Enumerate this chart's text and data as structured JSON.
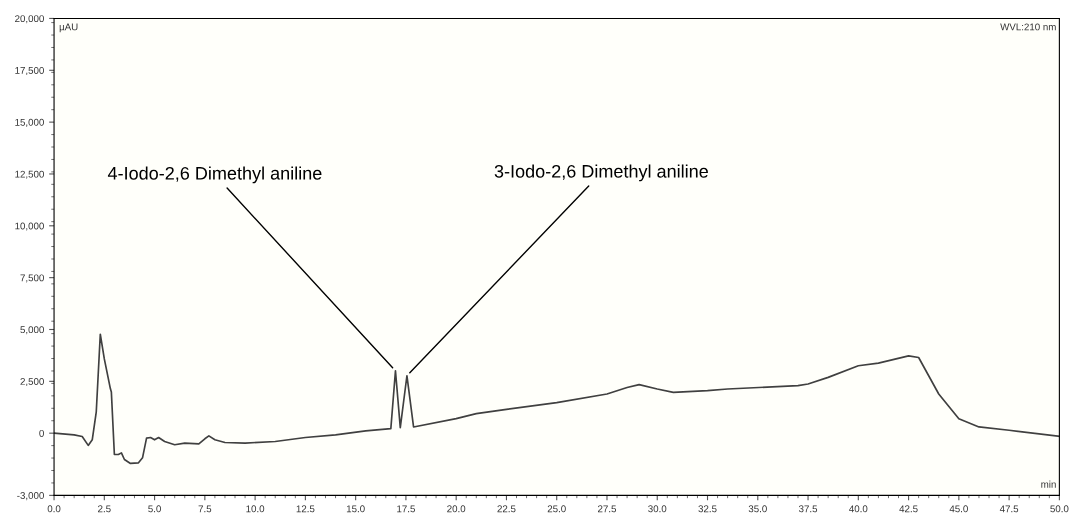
{
  "chart_data": {
    "type": "line",
    "xlabel": "min",
    "ylabel": "µAU",
    "xlim": [
      0,
      50
    ],
    "ylim": [
      -3000,
      20000
    ],
    "xticks": [
      {
        "value": 0,
        "label": "0.0"
      },
      2.5,
      {
        "value": 5,
        "label": "5.0"
      },
      7.5,
      {
        "value": 10,
        "label": "10.0"
      },
      12.5,
      {
        "value": 15,
        "label": "15.0"
      },
      17.5,
      {
        "value": 20,
        "label": "20.0"
      },
      22.5,
      {
        "value": 25,
        "label": "25.0"
      },
      27.5,
      {
        "value": 30,
        "label": "30.0"
      },
      32.5,
      {
        "value": 35,
        "label": "35.0"
      },
      37.5,
      {
        "value": 40,
        "label": "40.0"
      },
      42.5,
      {
        "value": 45,
        "label": "45.0"
      },
      47.5,
      {
        "value": 50,
        "label": "50.0"
      }
    ],
    "yticks": [
      {
        "value": -3000,
        "label": "-3,000"
      },
      0,
      {
        "value": 2500,
        "label": "2,500"
      },
      {
        "value": 5000,
        "label": "5,000"
      },
      {
        "value": 7500,
        "label": "7,500"
      },
      {
        "value": 10000,
        "label": "10,000"
      },
      {
        "value": 12500,
        "label": "12,500"
      },
      {
        "value": 15000,
        "label": "15,000"
      },
      {
        "value": 17500,
        "label": "17,500"
      },
      {
        "value": 20000,
        "label": "20,000"
      }
    ],
    "grid": false,
    "legend": false,
    "marker": "none",
    "line_style": "solid",
    "series": [
      {
        "color": "#404040",
        "x": [
          0,
          1.0,
          1.4,
          1.7,
          1.9,
          2.1,
          2.3,
          2.5,
          2.8,
          2.85,
          3.0,
          3.2,
          3.35,
          3.5,
          3.8,
          4.2,
          4.4,
          4.6,
          4.8,
          5.0,
          5.2,
          5.5,
          6.0,
          6.5,
          7.2,
          7.5,
          7.7,
          8.0,
          8.5,
          9.5,
          11.0,
          12.5,
          14.0,
          15.5,
          16.75,
          16.98,
          17.22,
          17.55,
          17.88,
          20.0,
          21.0,
          22.5,
          25.0,
          27.5,
          28.5,
          29.1,
          30.0,
          30.8,
          32.5,
          33.5,
          37.0,
          37.5,
          38.5,
          40.0,
          41.0,
          42.5,
          43.0,
          43.5,
          44.0,
          45.0,
          46.0,
          47.5,
          50.0
        ],
        "values": [
          0,
          -80,
          -160,
          -590,
          -320,
          1030,
          4770,
          3580,
          2150,
          1990,
          -1030,
          -1030,
          -950,
          -1270,
          -1460,
          -1430,
          -1190,
          -240,
          -210,
          -320,
          -210,
          -400,
          -560,
          -480,
          -520,
          -270,
          -130,
          -320,
          -450,
          -480,
          -400,
          -210,
          -80,
          110,
          220,
          3010,
          270,
          2770,
          300,
          700,
          940,
          1150,
          1470,
          1890,
          2200,
          2340,
          2130,
          1970,
          2050,
          2130,
          2290,
          2370,
          2690,
          3250,
          3380,
          3730,
          3650,
          2770,
          1890,
          700,
          300,
          140,
          -150
        ]
      }
    ],
    "annotations": [
      {
        "text": "4-Iodo-2,6 Dimethyl aniline",
        "x": 16.98,
        "y": 3010
      },
      {
        "text": "3-Iodo-2,6 Dimethyl aniline",
        "x": 17.55,
        "y": 2770
      },
      "WVL:210 nm"
    ]
  }
}
